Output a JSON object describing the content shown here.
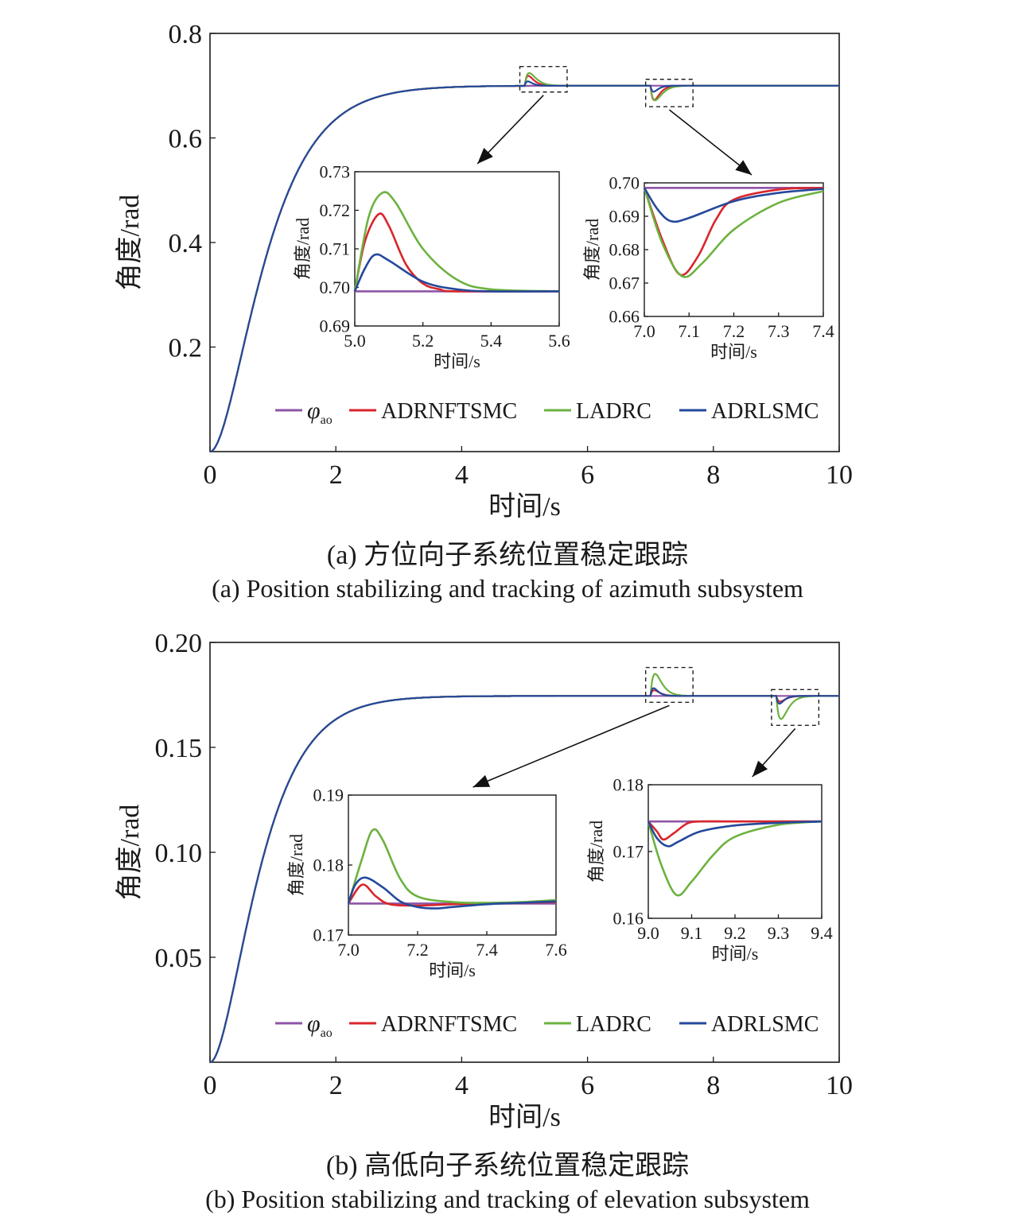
{
  "colors": {
    "phi_ao": "#8e55a6",
    "ADRNFTSMC": "#d9262b",
    "LADRC": "#6cb23f",
    "ADRLSMC": "#24499b",
    "axis": "#1a1a1a"
  },
  "captions": {
    "a_cn": "(a) 方位向子系统位置稳定跟踪",
    "a_en": "(a) Position stabilizing and tracking of azimuth subsystem",
    "b_cn": "(b) 高低向子系统位置稳定跟踪",
    "b_en": "(b) Position stabilizing and tracking of elevation subsystem"
  },
  "chart_data": [
    {
      "id": "a-main",
      "type": "line",
      "xlabel": "时间/s",
      "ylabel": "角度/rad",
      "xlim": [
        0,
        10
      ],
      "ylim": [
        0,
        0.8
      ],
      "xticks": [
        "0",
        "2",
        "4",
        "6",
        "8",
        "10"
      ],
      "yticks": [
        "0.2",
        "0.4",
        "0.6",
        "0.8"
      ],
      "legend": [
        "φao",
        "ADRNFTSMC",
        "LADRC",
        "ADRLSMC"
      ],
      "legend_placement": "bottom",
      "setpoint": 0.7,
      "rise_time_constant": 0.5,
      "disturbances": [
        {
          "t": 5.0,
          "dir": 1,
          "peaks": {
            "ADRNFTSMC": 0.719,
            "LADRC": 0.7245,
            "ADRLSMC": 0.7085
          }
        },
        {
          "t": 7.0,
          "dir": -1,
          "peaks": {
            "ADRNFTSMC": 0.6725,
            "LADRC": 0.672,
            "ADRLSMC": 0.6885
          }
        }
      ]
    },
    {
      "id": "a-inset-1",
      "type": "line",
      "xlabel": "时间/s",
      "ylabel": "角度/rad",
      "xlim": [
        5.0,
        5.6
      ],
      "ylim": [
        0.69,
        0.73
      ],
      "xticks": [
        "5.0",
        "5.2",
        "5.4",
        "5.6"
      ],
      "yticks": [
        "0.69",
        "0.70",
        "0.71",
        "0.72",
        "0.73"
      ],
      "series": [
        {
          "name": "φao",
          "x": [
            5.0,
            5.6
          ],
          "y": [
            0.699,
            0.699
          ]
        },
        {
          "name": "ADRNFTSMC",
          "x": [
            5.0,
            5.03,
            5.07,
            5.1,
            5.15,
            5.2,
            5.25,
            5.3,
            5.6
          ],
          "y": [
            0.699,
            0.712,
            0.719,
            0.716,
            0.706,
            0.701,
            0.6995,
            0.699,
            0.699
          ]
        },
        {
          "name": "LADRC",
          "x": [
            5.0,
            5.04,
            5.08,
            5.12,
            5.2,
            5.3,
            5.4,
            5.6
          ],
          "y": [
            0.699,
            0.718,
            0.7245,
            0.722,
            0.71,
            0.702,
            0.6995,
            0.699
          ]
        },
        {
          "name": "ADRLSMC",
          "x": [
            5.0,
            5.03,
            5.06,
            5.1,
            5.2,
            5.3,
            5.4,
            5.6
          ],
          "y": [
            0.699,
            0.705,
            0.7085,
            0.707,
            0.7015,
            0.6995,
            0.699,
            0.699
          ]
        }
      ]
    },
    {
      "id": "a-inset-2",
      "type": "line",
      "xlabel": "时间/s",
      "ylabel": "角度/rad",
      "xlim": [
        7.0,
        7.4
      ],
      "ylim": [
        0.66,
        0.7
      ],
      "xticks": [
        "7.0",
        "7.1",
        "7.2",
        "7.3",
        "7.4"
      ],
      "yticks": [
        "0.66",
        "0.67",
        "0.68",
        "0.69",
        "0.70"
      ],
      "series": [
        {
          "name": "φao",
          "x": [
            7.0,
            7.4
          ],
          "y": [
            0.6985,
            0.6985
          ]
        },
        {
          "name": "ADRNFTSMC",
          "x": [
            7.0,
            7.04,
            7.08,
            7.12,
            7.16,
            7.2,
            7.3,
            7.4
          ],
          "y": [
            0.6985,
            0.683,
            0.6725,
            0.678,
            0.689,
            0.695,
            0.698,
            0.6985
          ]
        },
        {
          "name": "LADRC",
          "x": [
            7.0,
            7.04,
            7.085,
            7.13,
            7.2,
            7.3,
            7.4
          ],
          "y": [
            0.6985,
            0.682,
            0.672,
            0.676,
            0.686,
            0.694,
            0.6975
          ]
        },
        {
          "name": "ADRLSMC",
          "x": [
            7.0,
            7.03,
            7.06,
            7.1,
            7.2,
            7.3,
            7.4
          ],
          "y": [
            0.6985,
            0.692,
            0.6885,
            0.6895,
            0.6945,
            0.697,
            0.6982
          ]
        }
      ]
    },
    {
      "id": "b-main",
      "type": "line",
      "xlabel": "时间/s",
      "ylabel": "角度/rad",
      "xlim": [
        0,
        10
      ],
      "ylim": [
        0,
        0.2
      ],
      "xticks": [
        "0",
        "2",
        "4",
        "6",
        "8",
        "10"
      ],
      "yticks": [
        "0.05",
        "0.10",
        "0.15",
        "0.20"
      ],
      "legend": [
        "φao",
        "ADRNFTSMC",
        "LADRC",
        "ADRLSMC"
      ],
      "legend_placement": "bottom",
      "setpoint": 0.1745,
      "rise_time_constant": 0.45,
      "disturbances": [
        {
          "t": 7.0,
          "dir": 1,
          "peaks": {
            "ADRNFTSMC": 0.1772,
            "LADRC": 0.185,
            "ADRLSMC": 0.1782
          }
        },
        {
          "t": 9.0,
          "dir": -1,
          "peaks": {
            "ADRNFTSMC": 0.1718,
            "LADRC": 0.1635,
            "ADRLSMC": 0.1708
          }
        }
      ]
    },
    {
      "id": "b-inset-1",
      "type": "line",
      "xlabel": "时间/s",
      "ylabel": "角度/rad",
      "xlim": [
        7.0,
        7.6
      ],
      "ylim": [
        0.17,
        0.19
      ],
      "xticks": [
        "7.0",
        "7.2",
        "7.4",
        "7.6"
      ],
      "yticks": [
        "0.17",
        "0.18",
        "0.19"
      ],
      "series": [
        {
          "name": "φao",
          "x": [
            7.0,
            7.6
          ],
          "y": [
            0.1745,
            0.1745
          ]
        },
        {
          "name": "ADRNFTSMC",
          "x": [
            7.0,
            7.04,
            7.08,
            7.12,
            7.2,
            7.3,
            7.4,
            7.5,
            7.6
          ],
          "y": [
            0.1745,
            0.1772,
            0.1755,
            0.1744,
            0.1742,
            0.1744,
            0.1745,
            0.1746,
            0.1747
          ]
        },
        {
          "name": "LADRC",
          "x": [
            7.0,
            7.04,
            7.07,
            7.1,
            7.15,
            7.2,
            7.3,
            7.4,
            7.5,
            7.6
          ],
          "y": [
            0.1745,
            0.181,
            0.185,
            0.1835,
            0.178,
            0.1755,
            0.1747,
            0.1746,
            0.1747,
            0.175
          ]
        },
        {
          "name": "ADRLSMC",
          "x": [
            7.0,
            7.02,
            7.05,
            7.1,
            7.15,
            7.2,
            7.25,
            7.3,
            7.4,
            7.5,
            7.6
          ],
          "y": [
            0.1745,
            0.1772,
            0.1782,
            0.1768,
            0.1748,
            0.174,
            0.1738,
            0.174,
            0.1744,
            0.1746,
            0.1748
          ]
        }
      ]
    },
    {
      "id": "b-inset-2",
      "type": "line",
      "xlabel": "时间/s",
      "ylabel": "角度/rad",
      "xlim": [
        9.0,
        9.4
      ],
      "ylim": [
        0.16,
        0.18
      ],
      "xticks": [
        "9.0",
        "9.1",
        "9.2",
        "9.3",
        "9.4"
      ],
      "yticks": [
        "0.16",
        "0.17",
        "0.18"
      ],
      "series": [
        {
          "name": "φao",
          "x": [
            9.0,
            9.4
          ],
          "y": [
            0.1745,
            0.1745
          ]
        },
        {
          "name": "ADRNFTSMC",
          "x": [
            9.0,
            9.02,
            9.035,
            9.06,
            9.09,
            9.12,
            9.2,
            9.4
          ],
          "y": [
            0.1745,
            0.173,
            0.1718,
            0.1728,
            0.1742,
            0.1745,
            0.1745,
            0.1745
          ]
        },
        {
          "name": "LADRC",
          "x": [
            9.0,
            9.03,
            9.065,
            9.1,
            9.15,
            9.2,
            9.3,
            9.4
          ],
          "y": [
            0.1745,
            0.168,
            0.1635,
            0.1655,
            0.1695,
            0.1722,
            0.174,
            0.1745
          ]
        },
        {
          "name": "ADRLSMC",
          "x": [
            9.0,
            9.02,
            9.045,
            9.07,
            9.12,
            9.2,
            9.3,
            9.4
          ],
          "y": [
            0.1745,
            0.172,
            0.1708,
            0.1715,
            0.173,
            0.1739,
            0.1743,
            0.1745
          ]
        }
      ]
    }
  ]
}
